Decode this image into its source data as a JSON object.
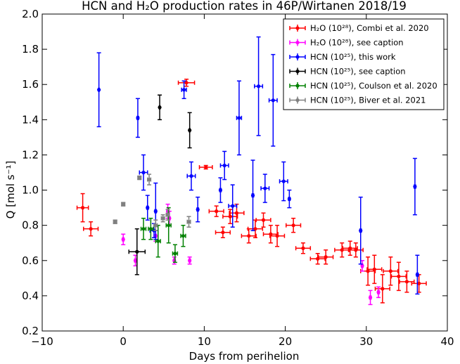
{
  "chart_data": {
    "type": "scatter",
    "title": "HCN and H₂O production rates in 46P/Wirtanen 2018/19",
    "xlabel": "Days from perihelion",
    "ylabel": "Q [mol s⁻¹]",
    "xlim": [
      -10,
      40
    ],
    "ylim": [
      0.2,
      2.0
    ],
    "xticks": [
      -10,
      0,
      10,
      20,
      30,
      40
    ],
    "yticks": [
      0.2,
      0.4,
      0.6,
      0.8,
      1.0,
      1.2,
      1.4,
      1.6,
      1.8,
      2.0
    ],
    "xtick_labels": [
      "−10",
      "0",
      "10",
      "20",
      "30",
      "40"
    ],
    "ytick_labels": [
      "0.2",
      "0.4",
      "0.6",
      "0.8",
      "1.0",
      "1.2",
      "1.4",
      "1.6",
      "1.8",
      "2.0"
    ],
    "grid": false,
    "legend_position": "top-right",
    "series": [
      {
        "name": "H₂O (10²⁸), Combi et al. 2020",
        "color": "#ff0000",
        "points": [
          {
            "x": -5.0,
            "y": 0.9,
            "xerr": 0.7,
            "yerr": 0.08
          },
          {
            "x": -4.0,
            "y": 0.78,
            "xerr": 0.9,
            "yerr": 0.04
          },
          {
            "x": 7.8,
            "y": 1.61,
            "xerr": 1.0,
            "yerr": 0.02
          },
          {
            "x": 10.2,
            "y": 1.13,
            "xerr": 0.8,
            "yerr": 0.01
          },
          {
            "x": 11.5,
            "y": 0.88,
            "xerr": 0.9,
            "yerr": 0.03
          },
          {
            "x": 12.3,
            "y": 0.76,
            "xerr": 0.9,
            "yerr": 0.03
          },
          {
            "x": 13.2,
            "y": 0.85,
            "xerr": 0.9,
            "yerr": 0.04
          },
          {
            "x": 14.0,
            "y": 0.87,
            "xerr": 0.9,
            "yerr": 0.05
          },
          {
            "x": 15.5,
            "y": 0.74,
            "xerr": 0.9,
            "yerr": 0.04
          },
          {
            "x": 16.3,
            "y": 0.78,
            "xerr": 0.9,
            "yerr": 0.05
          },
          {
            "x": 17.3,
            "y": 0.83,
            "xerr": 0.9,
            "yerr": 0.04
          },
          {
            "x": 18.2,
            "y": 0.75,
            "xerr": 0.9,
            "yerr": 0.05
          },
          {
            "x": 19.0,
            "y": 0.74,
            "xerr": 0.9,
            "yerr": 0.06
          },
          {
            "x": 21.0,
            "y": 0.8,
            "xerr": 0.9,
            "yerr": 0.04
          },
          {
            "x": 22.2,
            "y": 0.67,
            "xerr": 0.9,
            "yerr": 0.03
          },
          {
            "x": 24.0,
            "y": 0.61,
            "xerr": 0.9,
            "yerr": 0.03
          },
          {
            "x": 25.0,
            "y": 0.62,
            "xerr": 0.9,
            "yerr": 0.04
          },
          {
            "x": 27.0,
            "y": 0.66,
            "xerr": 0.9,
            "yerr": 0.04
          },
          {
            "x": 28.0,
            "y": 0.67,
            "xerr": 0.9,
            "yerr": 0.04
          },
          {
            "x": 28.7,
            "y": 0.66,
            "xerr": 0.9,
            "yerr": 0.04
          },
          {
            "x": 30.2,
            "y": 0.54,
            "xerr": 0.9,
            "yerr": 0.08
          },
          {
            "x": 31.0,
            "y": 0.55,
            "xerr": 0.9,
            "yerr": 0.08
          },
          {
            "x": 32.0,
            "y": 0.44,
            "xerr": 0.9,
            "yerr": 0.08
          },
          {
            "x": 33.0,
            "y": 0.54,
            "xerr": 0.9,
            "yerr": 0.08
          },
          {
            "x": 34.0,
            "y": 0.51,
            "xerr": 0.9,
            "yerr": 0.08
          },
          {
            "x": 35.0,
            "y": 0.48,
            "xerr": 0.9,
            "yerr": 0.06
          },
          {
            "x": 36.5,
            "y": 0.47,
            "xerr": 0.9,
            "yerr": 0.05
          }
        ]
      },
      {
        "name": "H₂O (10²⁸), see caption",
        "color": "#ff00ff",
        "points": [
          {
            "x": 0.0,
            "y": 0.72,
            "xerr": 0.1,
            "yerr": 0.03
          },
          {
            "x": 1.5,
            "y": 0.6,
            "xerr": 0.1,
            "yerr": 0.03
          },
          {
            "x": 4.0,
            "y": 0.74,
            "xerr": 0.1,
            "yerr": 0.03
          },
          {
            "x": 5.5,
            "y": 0.88,
            "xerr": 0.1,
            "yerr": 0.04
          },
          {
            "x": 5.7,
            "y": 0.84,
            "xerr": 0.1,
            "yerr": 0.04
          },
          {
            "x": 6.3,
            "y": 0.6,
            "xerr": 0.1,
            "yerr": 0.02
          },
          {
            "x": 8.2,
            "y": 0.6,
            "xerr": 0.1,
            "yerr": 0.02
          },
          {
            "x": 29.5,
            "y": 0.57,
            "xerr": 0.1,
            "yerr": 0.03
          },
          {
            "x": 30.5,
            "y": 0.39,
            "xerr": 0.1,
            "yerr": 0.04
          },
          {
            "x": 31.5,
            "y": 0.42,
            "xerr": 0.1,
            "yerr": 0.03
          }
        ]
      },
      {
        "name": "HCN (10²⁵), this work",
        "color": "#0000ff",
        "points": [
          {
            "x": -3.0,
            "y": 1.57,
            "xerr": 0.05,
            "yerr": 0.21
          },
          {
            "x": 1.8,
            "y": 1.41,
            "xerr": 0.1,
            "yerr": 0.11
          },
          {
            "x": 2.5,
            "y": 1.1,
            "xerr": 0.5,
            "yerr": 0.1
          },
          {
            "x": 3.0,
            "y": 0.9,
            "xerr": 0.1,
            "yerr": 0.07
          },
          {
            "x": 4.0,
            "y": 0.88,
            "xerr": 0.1,
            "yerr": 0.16
          },
          {
            "x": 3.8,
            "y": 0.77,
            "xerr": 0.5,
            "yerr": 0.04
          },
          {
            "x": 7.5,
            "y": 1.57,
            "xerr": 0.3,
            "yerr": 0.05
          },
          {
            "x": 8.4,
            "y": 1.08,
            "xerr": 0.5,
            "yerr": 0.08
          },
          {
            "x": 9.2,
            "y": 0.89,
            "xerr": 0.1,
            "yerr": 0.07
          },
          {
            "x": 12.5,
            "y": 1.14,
            "xerr": 0.5,
            "yerr": 0.08
          },
          {
            "x": 12.0,
            "y": 1.0,
            "xerr": 0.1,
            "yerr": 0.07
          },
          {
            "x": 13.5,
            "y": 0.91,
            "xerr": 0.5,
            "yerr": 0.12
          },
          {
            "x": 14.3,
            "y": 1.41,
            "xerr": 0.3,
            "yerr": 0.21
          },
          {
            "x": 16.0,
            "y": 0.97,
            "xerr": 0.1,
            "yerr": 0.2
          },
          {
            "x": 16.7,
            "y": 1.59,
            "xerr": 0.5,
            "yerr": 0.28
          },
          {
            "x": 17.5,
            "y": 1.01,
            "xerr": 0.5,
            "yerr": 0.08
          },
          {
            "x": 18.5,
            "y": 1.51,
            "xerr": 0.5,
            "yerr": 0.26
          },
          {
            "x": 19.8,
            "y": 1.05,
            "xerr": 0.5,
            "yerr": 0.11
          },
          {
            "x": 20.5,
            "y": 0.95,
            "xerr": 0.1,
            "yerr": 0.05
          },
          {
            "x": 29.3,
            "y": 0.77,
            "xerr": 0.1,
            "yerr": 0.19
          },
          {
            "x": 36.0,
            "y": 1.02,
            "xerr": 0.1,
            "yerr": 0.16
          },
          {
            "x": 36.3,
            "y": 0.52,
            "xerr": 0.1,
            "yerr": 0.11
          }
        ]
      },
      {
        "name": "HCN (10²⁵), see caption",
        "color": "#000000",
        "points": [
          {
            "x": 1.7,
            "y": 0.65,
            "xerr": 1.0,
            "yerr": 0.13
          },
          {
            "x": 4.5,
            "y": 1.47,
            "xerr": 0.05,
            "yerr": 0.07
          },
          {
            "x": 8.2,
            "y": 1.34,
            "xerr": 0.05,
            "yerr": 0.1
          }
        ]
      },
      {
        "name": "HCN (10²⁵), Coulson et al. 2020",
        "color": "#008000",
        "points": [
          {
            "x": 2.5,
            "y": 0.78,
            "xerr": 0.3,
            "yerr": 0.06
          },
          {
            "x": 3.4,
            "y": 0.78,
            "xerr": 0.3,
            "yerr": 0.06
          },
          {
            "x": 4.3,
            "y": 0.71,
            "xerr": 0.3,
            "yerr": 0.09
          },
          {
            "x": 5.6,
            "y": 0.8,
            "xerr": 0.3,
            "yerr": 0.1
          },
          {
            "x": 6.4,
            "y": 0.64,
            "xerr": 0.3,
            "yerr": 0.05
          },
          {
            "x": 7.4,
            "y": 0.74,
            "xerr": 0.3,
            "yerr": 0.06
          }
        ]
      },
      {
        "name": "HCN (10²⁵), Biver et al. 2021",
        "color": "#808080",
        "points": [
          {
            "x": -1.0,
            "y": 0.82,
            "xerr": 0.2,
            "yerr": 0.01
          },
          {
            "x": 0.0,
            "y": 0.92,
            "xerr": 0.2,
            "yerr": 0.01
          },
          {
            "x": 2.0,
            "y": 1.07,
            "xerr": 0.2,
            "yerr": 0.01
          },
          {
            "x": 3.2,
            "y": 1.06,
            "xerr": 0.2,
            "yerr": 0.03
          },
          {
            "x": 4.0,
            "y": 0.8,
            "xerr": 0.2,
            "yerr": 0.03
          },
          {
            "x": 4.9,
            "y": 0.84,
            "xerr": 0.2,
            "yerr": 0.02
          },
          {
            "x": 5.5,
            "y": 0.86,
            "xerr": 0.2,
            "yerr": 0.03
          },
          {
            "x": 8.1,
            "y": 0.82,
            "xerr": 0.2,
            "yerr": 0.03
          }
        ]
      }
    ]
  }
}
